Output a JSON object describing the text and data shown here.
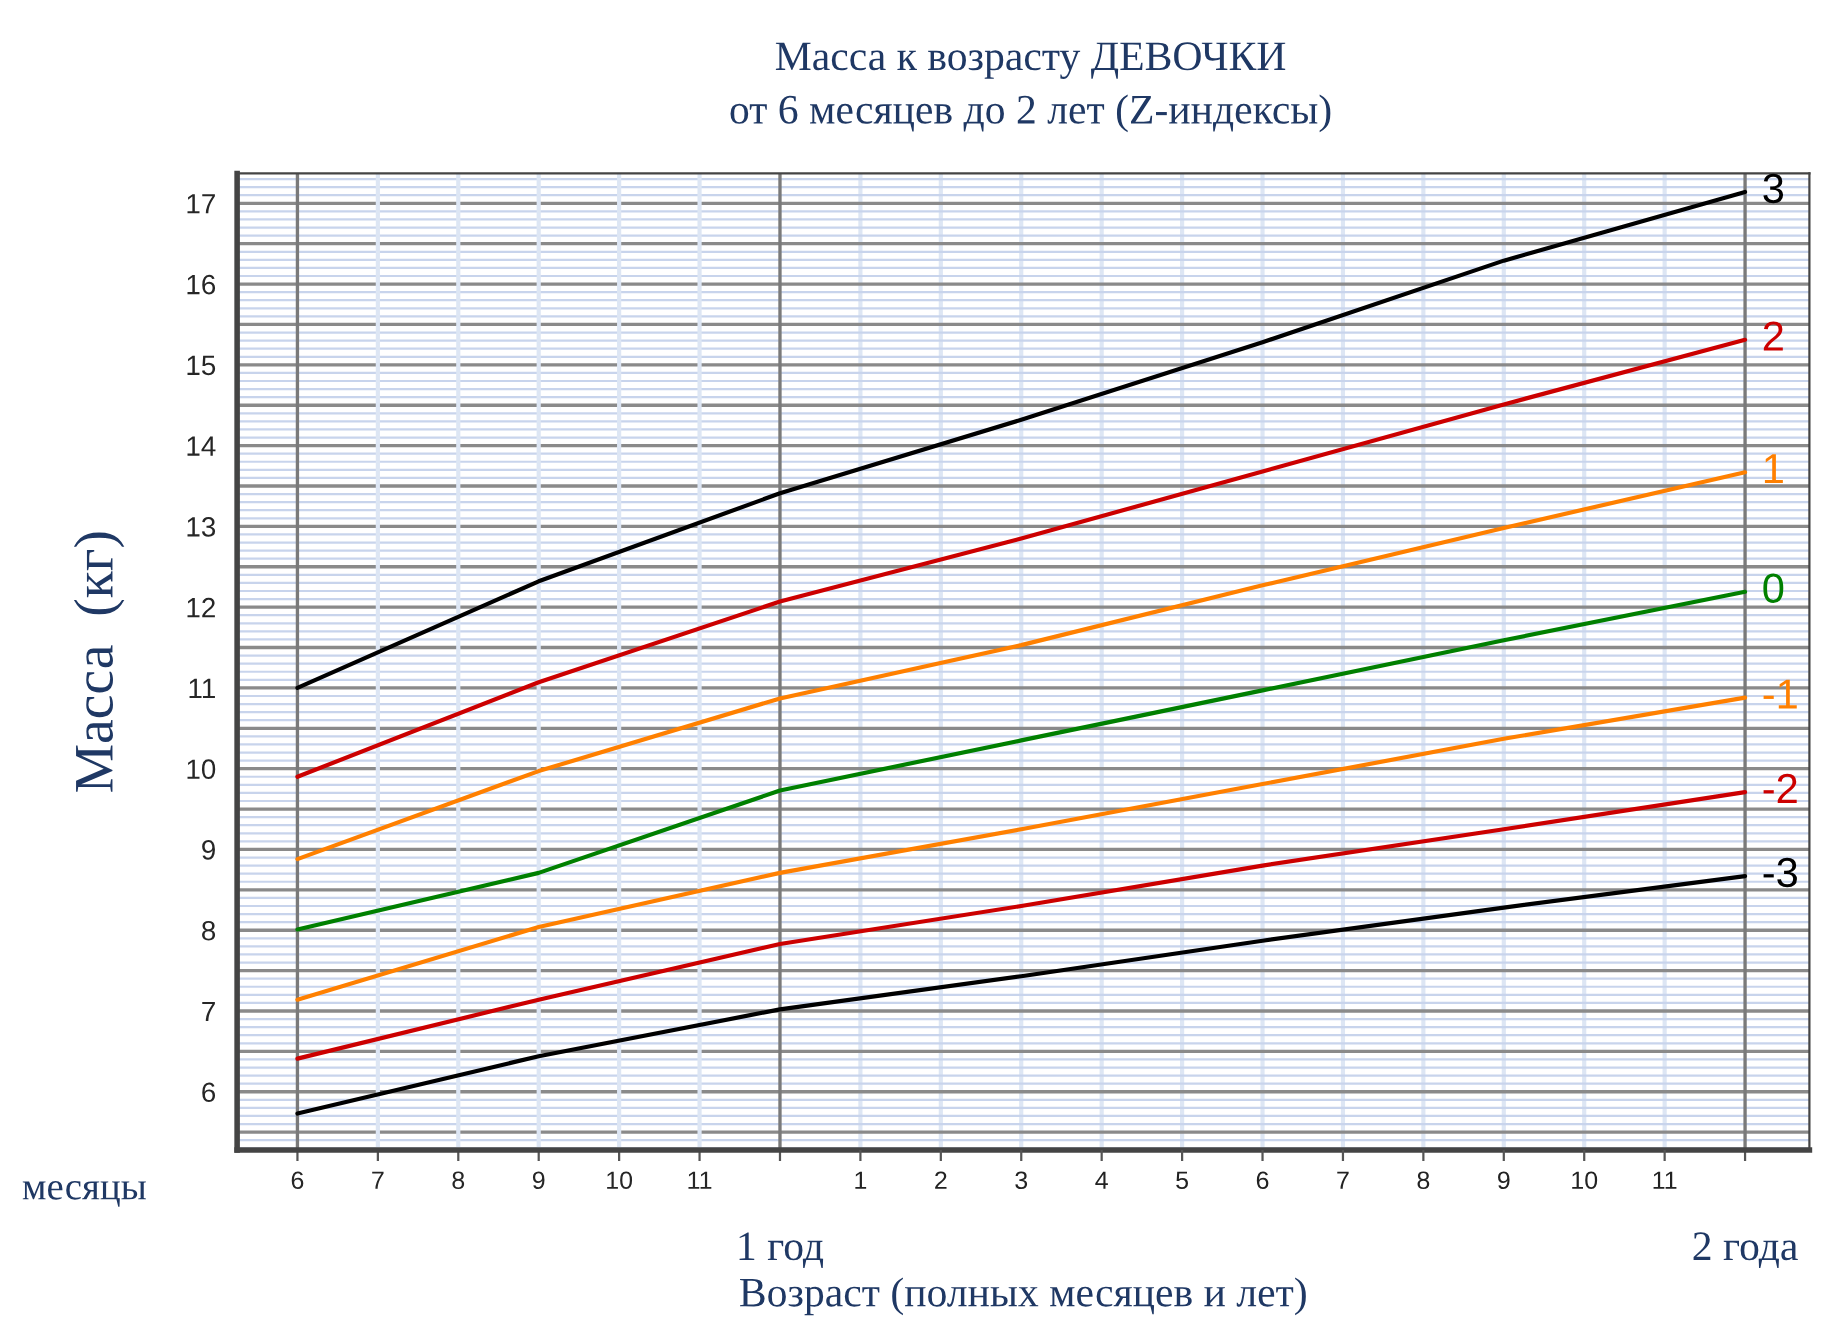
{
  "chart_data": {
    "type": "line",
    "title": "Масса к возрасту ДЕВОЧКИ",
    "subtitle": "от 6 месяцев до 2 лет (Z-индексы)",
    "xlabel": "Возраст (полных месяцев и лет)",
    "ylabel": "Масса  (кг)",
    "x": [
      6,
      9,
      12,
      15,
      18,
      21,
      24
    ],
    "series": [
      {
        "name": "3",
        "color": "#000000",
        "values": [
          11.0,
          12.32,
          13.41,
          14.32,
          15.28,
          16.29,
          17.14
        ]
      },
      {
        "name": "2",
        "color": "#cc0000",
        "values": [
          9.9,
          11.07,
          12.07,
          12.85,
          13.68,
          14.51,
          15.31
        ]
      },
      {
        "name": "1",
        "color": "#ff8000",
        "values": [
          8.88,
          9.97,
          10.87,
          11.53,
          12.27,
          12.98,
          13.67
        ]
      },
      {
        "name": "0",
        "color": "#008000",
        "values": [
          8.01,
          8.71,
          9.73,
          10.35,
          10.97,
          11.59,
          12.19
        ]
      },
      {
        "name": "-1",
        "color": "#ff8000",
        "values": [
          7.14,
          8.04,
          8.71,
          9.25,
          9.81,
          10.37,
          10.88
        ]
      },
      {
        "name": "-2",
        "color": "#cc0000",
        "values": [
          6.41,
          7.14,
          7.83,
          8.3,
          8.8,
          9.25,
          9.71
        ]
      },
      {
        "name": "-3",
        "color": "#000000",
        "values": [
          5.73,
          6.44,
          7.02,
          7.43,
          7.87,
          8.28,
          8.67
        ]
      }
    ],
    "xlim": [
      5.25,
      24.8
    ],
    "ylim": [
      5.28,
      17.37
    ],
    "xticks": [
      6,
      7,
      8,
      9,
      10,
      11,
      {
        "value": 12,
        "label": null
      },
      {
        "value": 24,
        "label": null
      }
    ],
    "x2lim": [
      -6.75,
      12.8
    ],
    "x2ticks": [
      1,
      2,
      3,
      4,
      5,
      6,
      7,
      8,
      9,
      10,
      11
    ],
    "yticks": [
      6,
      7,
      8,
      9,
      10,
      11,
      12,
      13,
      14,
      15,
      16,
      17
    ],
    "grid": true,
    "legend": false,
    "marker": "none",
    "line_style": "solid",
    "annotations": [
      "месяцы",
      "1 год",
      "2 года"
    ]
  }
}
